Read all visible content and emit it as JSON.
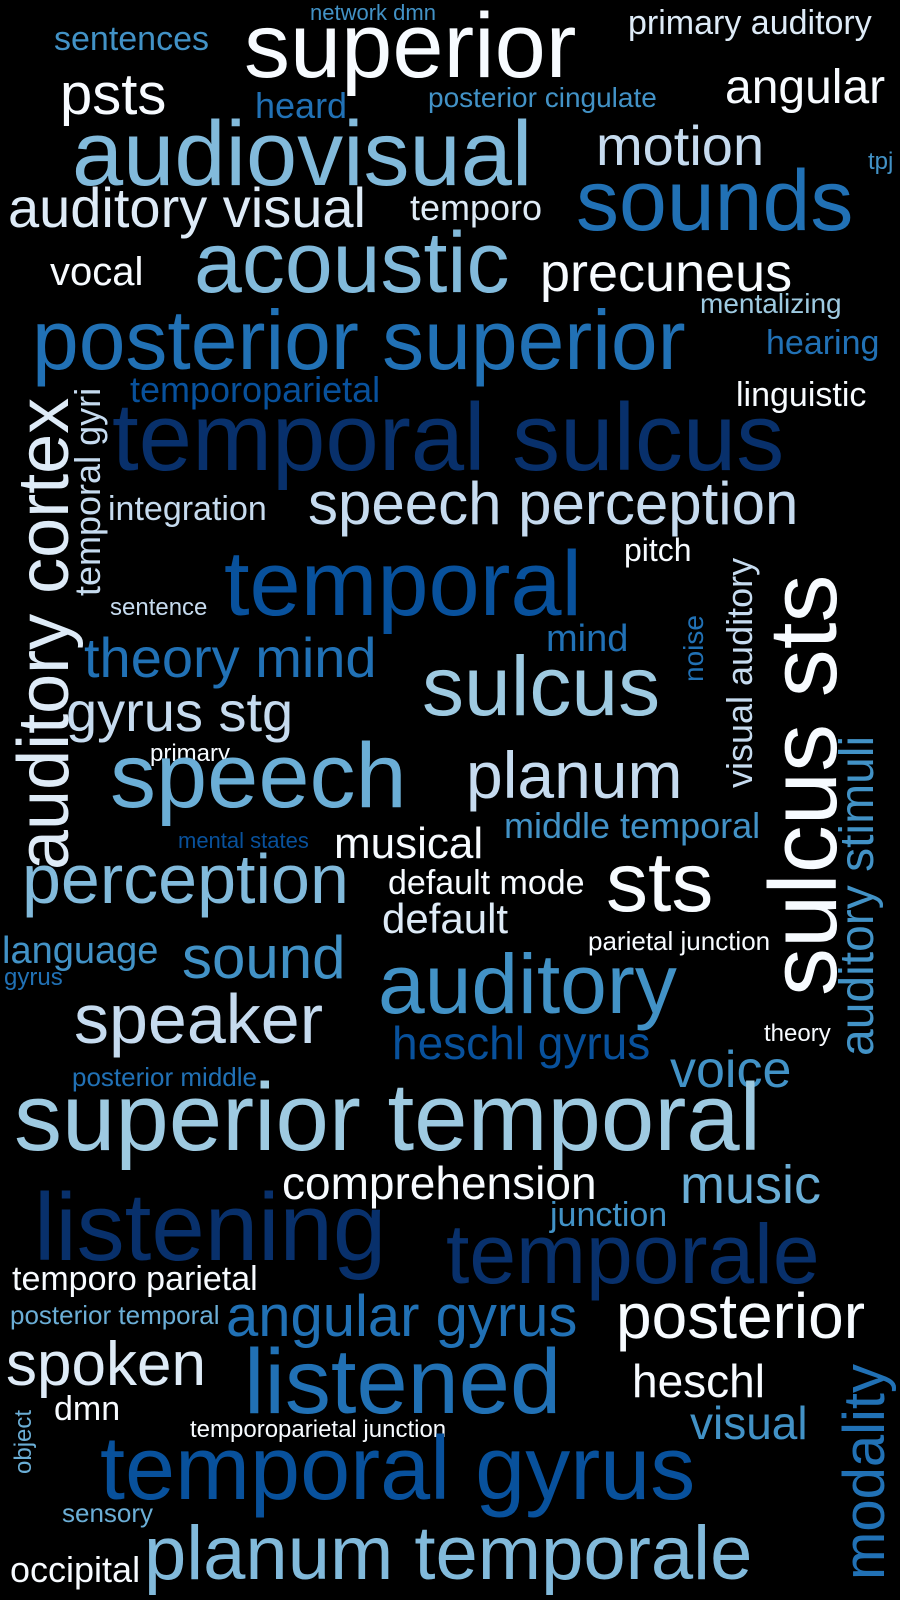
{
  "colors": {
    "background": "#000000",
    "palette": [
      "#f7fbff",
      "#deebf7",
      "#9ecae1",
      "#6baed6",
      "#4292c6",
      "#2171b5",
      "#08519c",
      "#08306b"
    ]
  },
  "words": {
    "network_dmn": "network dmn",
    "sentences": "sentences",
    "superior": "superior",
    "primary_auditory": "primary auditory",
    "psts": "psts",
    "heard": "heard",
    "posterior_cingulate": "posterior cingulate",
    "angular": "angular",
    "audiovisual": "audiovisual",
    "motion": "motion",
    "tpj": "tpj",
    "auditory_visual": "auditory visual",
    "temporo": "temporo",
    "sounds": "sounds",
    "vocal": "vocal",
    "acoustic": "acoustic",
    "precuneus": "precuneus",
    "mentalizing": "mentalizing",
    "posterior_superior": "posterior superior",
    "hearing": "hearing",
    "temporoparietal": "temporoparietal",
    "linguistic": "linguistic",
    "temporal_sulcus": "temporal sulcus",
    "integration": "integration",
    "speech_perception": "speech perception",
    "pitch": "pitch",
    "sentence": "sentence",
    "temporal": "temporal",
    "mind": "mind",
    "theory_mind": "theory mind",
    "sulcus": "sulcus",
    "gyrus_stg": "gyrus stg",
    "primary": "primary",
    "speech": "speech",
    "planum": "planum",
    "middle_temporal": "middle temporal",
    "mental_states": "mental states",
    "musical": "musical",
    "perception": "perception",
    "default_mode": "default mode",
    "sts": "sts",
    "default": "default",
    "parietal_junction": "parietal junction",
    "language": "language",
    "gyrus": "gyrus",
    "sound": "sound",
    "auditory": "auditory",
    "speaker": "speaker",
    "theory": "theory",
    "heschl_gyrus": "heschl gyrus",
    "voice": "voice",
    "posterior_middle": "posterior middle",
    "superior_temporal": "superior temporal",
    "comprehension": "comprehension",
    "music": "music",
    "listening": "listening",
    "junction": "junction",
    "temporale": "temporale",
    "temporo_parietal": "temporo parietal",
    "posterior_temporal": "posterior temporal",
    "angular_gyrus": "angular gyrus",
    "posterior": "posterior",
    "spoken": "spoken",
    "listened": "listened",
    "heschl": "heschl",
    "dmn": "dmn",
    "temporoparietal_junction": "temporoparietal junction",
    "visual": "visual",
    "temporal_gyrus": "temporal gyrus",
    "sensory": "sensory",
    "occipital": "occipital",
    "planum_temporale": "planum temporale",
    "auditory_cortex": "auditory cortex",
    "temporal_gyri": "temporal gyri",
    "noise": "noise",
    "visual_auditory": "visual auditory",
    "sulcus_sts": "sulcus sts",
    "auditory_stimuli": "auditory stimuli",
    "modality": "modality",
    "object": "object"
  }
}
